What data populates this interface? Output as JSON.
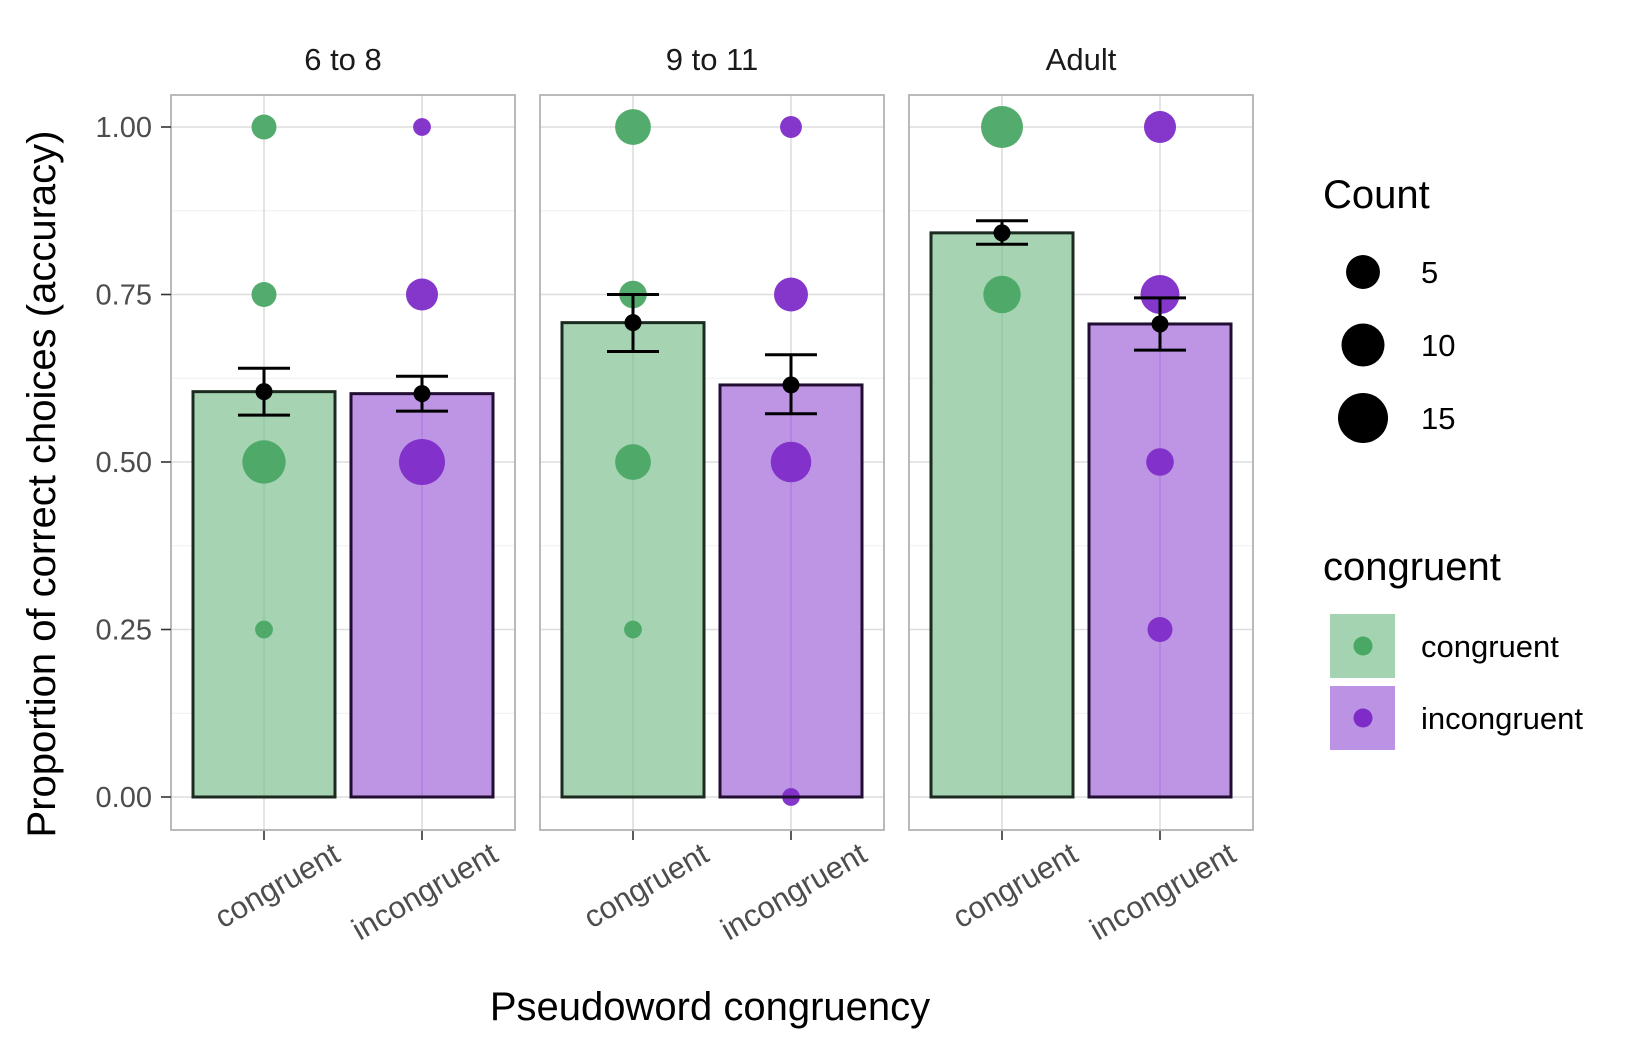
{
  "chart_data": {
    "type": "bar",
    "facets": [
      "6 to 8",
      "9 to 11",
      "Adult"
    ],
    "categories": [
      "congruent",
      "incongruent"
    ],
    "xlabel": "Pseudoword congruency",
    "ylabel": "Proportion of correct choices (accuracy)",
    "ylim": [
      0,
      1
    ],
    "yticks": [
      0,
      0.25,
      0.5,
      0.75,
      1
    ],
    "ytick_labels": [
      "0.00",
      "0.25",
      "0.50",
      "0.75",
      "1.00"
    ],
    "grid": true,
    "colors": {
      "congruent": "#4aa865",
      "incongruent": "#7e2bc8"
    },
    "panels": [
      {
        "facet": "6 to 8",
        "bars": [
          {
            "category": "congruent",
            "mean": 0.605,
            "lower": 0.57,
            "upper": 0.64,
            "points": [
              {
                "y": 1.0,
                "count": 3
              },
              {
                "y": 0.75,
                "count": 3
              },
              {
                "y": 0.5,
                "count": 13
              },
              {
                "y": 0.25,
                "count": 1
              }
            ]
          },
          {
            "category": "incongruent",
            "mean": 0.602,
            "lower": 0.576,
            "upper": 0.628,
            "points": [
              {
                "y": 1.0,
                "count": 1
              },
              {
                "y": 0.75,
                "count": 6
              },
              {
                "y": 0.5,
                "count": 15
              }
            ]
          }
        ]
      },
      {
        "facet": "9 to 11",
        "bars": [
          {
            "category": "congruent",
            "mean": 0.708,
            "lower": 0.665,
            "upper": 0.75,
            "points": [
              {
                "y": 1.0,
                "count": 8
              },
              {
                "y": 0.75,
                "count": 4
              },
              {
                "y": 0.5,
                "count": 8
              },
              {
                "y": 0.25,
                "count": 1
              }
            ]
          },
          {
            "category": "incongruent",
            "mean": 0.615,
            "lower": 0.572,
            "upper": 0.66,
            "points": [
              {
                "y": 1.0,
                "count": 2
              },
              {
                "y": 0.75,
                "count": 7
              },
              {
                "y": 0.5,
                "count": 11
              },
              {
                "y": 0.0,
                "count": 1
              }
            ]
          }
        ]
      },
      {
        "facet": "Adult",
        "bars": [
          {
            "category": "congruent",
            "mean": 0.842,
            "lower": 0.825,
            "upper": 0.86,
            "points": [
              {
                "y": 1.0,
                "count": 12
              },
              {
                "y": 0.75,
                "count": 9
              }
            ]
          },
          {
            "category": "incongruent",
            "mean": 0.706,
            "lower": 0.667,
            "upper": 0.745,
            "points": [
              {
                "y": 1.0,
                "count": 6
              },
              {
                "y": 0.75,
                "count": 10
              },
              {
                "y": 0.5,
                "count": 4
              },
              {
                "y": 0.25,
                "count": 3
              }
            ]
          }
        ]
      }
    ],
    "legend": {
      "size_title": "Count",
      "size_breaks": [
        5,
        10,
        15
      ],
      "size_labels": [
        "5",
        "10",
        "15"
      ],
      "color_title": "congruent",
      "color_items": [
        "congruent",
        "incongruent"
      ],
      "placement": "right"
    }
  }
}
